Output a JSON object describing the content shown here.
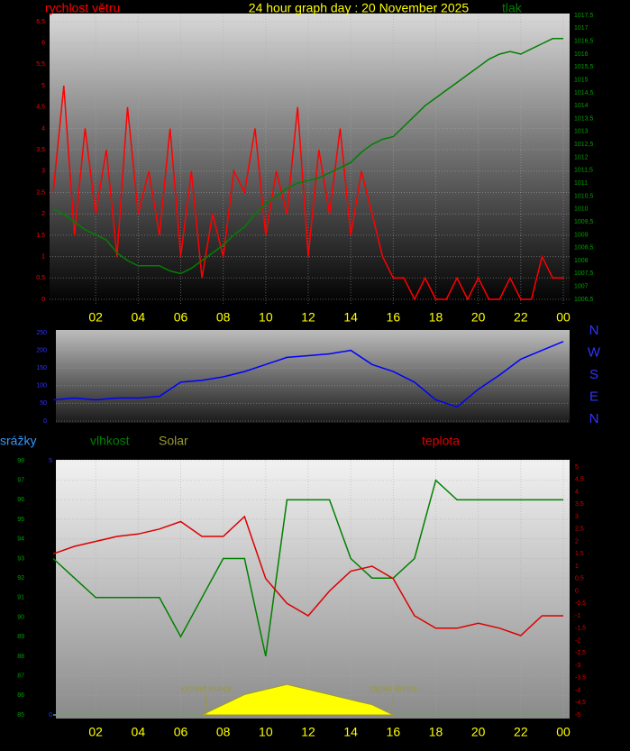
{
  "chart_data": [
    {
      "type": "line",
      "title": "24 hour graph day : 20 November 2025",
      "x": [
        0,
        0.5,
        1,
        1.5,
        2,
        2.5,
        3,
        3.5,
        4,
        4.5,
        5,
        5.5,
        6,
        6.5,
        7,
        7.5,
        8,
        8.5,
        9,
        9.5,
        10,
        10.5,
        11,
        11.5,
        12,
        12.5,
        13,
        13.5,
        14,
        14.5,
        15,
        15.5,
        16,
        16.5,
        17,
        17.5,
        18,
        18.5,
        19,
        19.5,
        20,
        20.5,
        21,
        21.5,
        22,
        22.5,
        23,
        23.5,
        24
      ],
      "xlim": [
        0,
        24
      ],
      "xticks": [
        {
          "value": 2,
          "label": "02"
        },
        {
          "value": 4,
          "label": "04"
        },
        {
          "value": 6,
          "label": "06"
        },
        {
          "value": 8,
          "label": "08"
        },
        10,
        12,
        14,
        16,
        18,
        20,
        22,
        {
          "value": 24,
          "label": "00"
        }
      ],
      "series": [
        {
          "name": "rychlost větru",
          "color": "#ff0000",
          "values": [
            2.5,
            5,
            1.5,
            4,
            2,
            3.5,
            1,
            4.5,
            2,
            3,
            1.5,
            4,
            1,
            3,
            0.5,
            2,
            1,
            3,
            2.5,
            4,
            1.5,
            3,
            2,
            4.5,
            1,
            3.5,
            2,
            4,
            1.5,
            3,
            2,
            1,
            0.5,
            0.5,
            0,
            0.5,
            0,
            0,
            0.5,
            0,
            0.5,
            0,
            0,
            0.5,
            0,
            0,
            1,
            0.5,
            0.5
          ]
        },
        {
          "name": "tlak",
          "color": "#008000",
          "axis": "y2",
          "values": [
            1010,
            1009.8,
            1009.5,
            1009.2,
            1009,
            1008.8,
            1008.3,
            1008,
            1007.8,
            1007.8,
            1007.8,
            1007.6,
            1007.5,
            1007.7,
            1008,
            1008.3,
            1008.6,
            1009,
            1009.3,
            1009.8,
            1010.2,
            1010.5,
            1010.8,
            1011,
            1011.1,
            1011.2,
            1011.4,
            1011.6,
            1011.8,
            1012.2,
            1012.5,
            1012.7,
            1012.8,
            1013.2,
            1013.6,
            1014,
            1014.3,
            1014.6,
            1014.9,
            1015.2,
            1015.5,
            1015.8,
            1016,
            1016.1,
            1016,
            1016.2,
            1016.4,
            1016.6,
            1016.6
          ]
        }
      ],
      "ylim": [
        0,
        6.5
      ],
      "yticks": [
        0,
        {
          "value": 0.5,
          "label": "0,5"
        },
        1,
        {
          "value": 1.5,
          "label": "1,5"
        },
        2,
        {
          "value": 2.5,
          "label": "2,5"
        },
        3,
        {
          "value": 3.5,
          "label": "3,5"
        },
        4,
        {
          "value": 4.5,
          "label": "4,5"
        },
        5,
        {
          "value": 5.5,
          "label": "5,5"
        },
        6,
        {
          "value": 6.5,
          "label": "6,5"
        }
      ],
      "y2lim": [
        1006.5,
        1017.5
      ],
      "y2ticks": [
        {
          "value": 1006.5,
          "label": "1006,5"
        },
        1007,
        {
          "value": 1007.5,
          "label": "1007,5"
        },
        1008,
        {
          "value": 1008.5,
          "label": "1008,5"
        },
        1009,
        {
          "value": 1009.5,
          "label": "1009,5"
        },
        1010,
        {
          "value": 1010.5,
          "label": "1010,5"
        },
        1011,
        {
          "value": 1011.5,
          "label": "1011,5"
        },
        1012,
        {
          "value": 1012.5,
          "label": "1012,5"
        },
        1013,
        {
          "value": 1013.5,
          "label": "1013,5"
        },
        1014,
        {
          "value": 1014.5,
          "label": "1014,5"
        },
        1015,
        {
          "value": 1015.5,
          "label": "1015,5"
        },
        1016,
        {
          "value": 1016.5,
          "label": "1016,5"
        },
        1017,
        {
          "value": 1017.5,
          "label": "1017,5"
        }
      ],
      "grid": true
    },
    {
      "type": "line",
      "x": [
        0,
        1,
        2,
        3,
        4,
        5,
        6,
        7,
        8,
        9,
        10,
        11,
        12,
        13,
        14,
        15,
        16,
        17,
        18,
        19,
        20,
        21,
        22,
        23,
        24
      ],
      "xlim": [
        0,
        24
      ],
      "series": [
        {
          "color": "#0000ff",
          "values": [
            60,
            65,
            60,
            65,
            65,
            70,
            110,
            115,
            125,
            140,
            160,
            180,
            185,
            190,
            200,
            160,
            140,
            110,
            60,
            40,
            90,
            130,
            175,
            200,
            225
          ]
        }
      ],
      "ylim": [
        0,
        250
      ],
      "yticks": [
        0,
        50,
        100,
        150,
        200,
        250
      ],
      "direction_labels": [
        "N",
        "W",
        "S",
        "E",
        "N"
      ],
      "grid": true
    },
    {
      "type": "line",
      "x": [
        0,
        1,
        2,
        3,
        4,
        5,
        6,
        7,
        8,
        9,
        10,
        11,
        12,
        13,
        14,
        15,
        16,
        17,
        18,
        19,
        20,
        21,
        22,
        23,
        24
      ],
      "xlim": [
        0,
        24
      ],
      "xticks": [
        {
          "value": 2,
          "label": "02"
        },
        {
          "value": 4,
          "label": "04"
        },
        {
          "value": 6,
          "label": "06"
        },
        {
          "value": 8,
          "label": "08"
        },
        10,
        12,
        14,
        16,
        18,
        20,
        22,
        {
          "value": 24,
          "label": "00"
        }
      ],
      "series": [
        {
          "name": "vlhkost",
          "color": "#008000",
          "values": [
            93,
            92,
            91,
            91,
            91,
            91,
            89,
            91,
            93,
            93,
            88,
            96,
            96,
            96,
            93,
            92,
            92,
            93,
            97,
            96,
            96,
            96,
            96,
            96,
            96
          ]
        },
        {
          "name": "teplota",
          "color": "#dd0000",
          "axis": "y2",
          "values": [
            1.5,
            1.8,
            2,
            2.2,
            2.3,
            2.5,
            2.8,
            2.2,
            2.2,
            3,
            0.5,
            -0.5,
            -1,
            0,
            0.8,
            1,
            0.5,
            -1,
            -1.5,
            -1.5,
            -1.3,
            -1.5,
            -1.8,
            -1,
            -1
          ]
        },
        {
          "name": "srážky",
          "color": "#3399ff",
          "axis": "y3",
          "values": [
            0,
            0,
            0,
            0,
            0,
            0,
            0,
            0,
            0,
            0,
            0,
            0,
            0,
            0,
            0,
            0,
            0,
            0,
            0,
            0,
            0,
            0,
            0,
            0,
            0
          ]
        },
        {
          "name": "Solar",
          "color": "#999933",
          "axis": "y3",
          "values": [
            0,
            0,
            0,
            0,
            0,
            0,
            0,
            0,
            0.2,
            0.4,
            0.5,
            0.6,
            0.5,
            0.4,
            0.3,
            0.2,
            0,
            0,
            0,
            0,
            0,
            0,
            0,
            0,
            0
          ]
        }
      ],
      "ylim": [
        85,
        98
      ],
      "yticks": [
        85,
        86,
        87,
        88,
        89,
        90,
        91,
        92,
        93,
        94,
        95,
        96,
        97,
        98
      ],
      "y2lim": [
        -5,
        5
      ],
      "y2ticks": [
        -5,
        {
          "value": -4.5,
          "label": "-4,5"
        },
        -4,
        {
          "value": -3.5,
          "label": "-3,5"
        },
        -3,
        {
          "value": -2.5,
          "label": "-2,5"
        },
        -2,
        {
          "value": -1.5,
          "label": "-1,5"
        },
        -1,
        {
          "value": -0.5,
          "label": "-0,5"
        },
        0,
        {
          "value": 0.5,
          "label": "0,5"
        },
        1,
        {
          "value": 1.5,
          "label": "1,5"
        },
        2,
        {
          "value": 2.5,
          "label": "2,5"
        },
        3,
        {
          "value": 3.5,
          "label": "3,5"
        },
        4,
        {
          "value": 4.5,
          "label": "4,5"
        },
        5
      ],
      "y3lim": [
        0,
        5
      ],
      "y3ticks": [
        0,
        5
      ],
      "annotations": [
        {
          "text": "východ slunce",
          "x": 7.2
        },
        {
          "text": "západ slunce",
          "x": 16
        }
      ],
      "grid": true
    }
  ]
}
